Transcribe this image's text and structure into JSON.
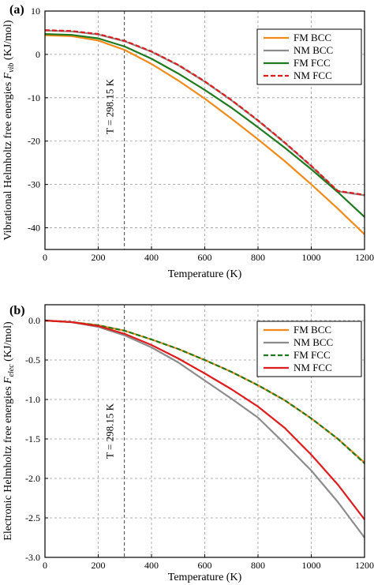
{
  "chart_data": [
    {
      "panel": "(a)",
      "type": "line",
      "xlabel": "Temperature (K)",
      "ylabel": "Vibrational Helmholtz free energies ",
      "ylabel_symbol": "F",
      "ylabel_sub": "vib",
      "ylabel_unit": " (KJ/mol)",
      "xlim": [
        0,
        1200
      ],
      "ylim": [
        -45,
        10
      ],
      "xticks": [
        0,
        200,
        400,
        600,
        800,
        1000,
        1200
      ],
      "yticks": [
        -40,
        -30,
        -20,
        -10,
        0,
        10
      ],
      "grid": true,
      "legend_position": "top-right",
      "annotation": {
        "text": "T = 298.15 K",
        "x": 298.15
      },
      "x": [
        0,
        100,
        200,
        300,
        400,
        500,
        600,
        700,
        800,
        900,
        1000,
        1100,
        1200
      ],
      "series": [
        {
          "name": "FM BCC",
          "color": "#f28a1a",
          "dash": "solid",
          "values": [
            4.4,
            4.2,
            3.2,
            1.0,
            -2.2,
            -6.0,
            -10.2,
            -14.8,
            -19.6,
            -24.6,
            -30.0,
            -35.6,
            -41.5
          ]
        },
        {
          "name": "NM BCC",
          "color": "#8c8c8c",
          "dash": "solid",
          "values": [
            5.5,
            5.3,
            4.6,
            3.0,
            0.6,
            -2.5,
            -6.3,
            -10.6,
            -15.3,
            -20.4,
            -25.8,
            -31.6,
            -32.5
          ]
        },
        {
          "name": "FM FCC",
          "color": "#1f7a1f",
          "dash": "solid",
          "values": [
            4.7,
            4.5,
            3.7,
            1.8,
            -1.0,
            -4.4,
            -8.2,
            -12.3,
            -16.8,
            -21.5,
            -26.5,
            -31.8,
            -37.5
          ]
        },
        {
          "name": "NM FCC",
          "color": "#e01b1b",
          "dash": "dashed",
          "values": [
            5.6,
            5.4,
            4.7,
            3.1,
            0.7,
            -2.4,
            -6.2,
            -10.5,
            -15.2,
            -20.3,
            -25.7,
            -31.5,
            -32.4
          ]
        }
      ]
    },
    {
      "panel": "(b)",
      "type": "line",
      "xlabel": "Temperature (K)",
      "ylabel": "Electronic Helmholtz free energies ",
      "ylabel_symbol": "F",
      "ylabel_sub": "elec",
      "ylabel_unit": " (KJ/mol)",
      "xlim": [
        0,
        1200
      ],
      "ylim": [
        -3.0,
        0.2
      ],
      "xticks": [
        0,
        200,
        400,
        600,
        800,
        1000,
        1200
      ],
      "yticks": [
        -3.0,
        -2.5,
        -2.0,
        -1.5,
        -1.0,
        -0.5,
        0.0
      ],
      "ytick_labels": [
        "-3.0",
        "-2.5",
        "-2.0",
        "-1.5",
        "-1.0",
        "-0.5",
        "0.0"
      ],
      "grid": true,
      "legend_position": "top-right",
      "annotation": {
        "text": "T = 298.15 K",
        "x": 298.15
      },
      "x": [
        0,
        100,
        200,
        300,
        400,
        500,
        600,
        700,
        800,
        900,
        1000,
        1100,
        1200
      ],
      "series": [
        {
          "name": "FM BCC",
          "color": "#f28a1a",
          "dash": "solid",
          "values": [
            0.0,
            -0.02,
            -0.06,
            -0.13,
            -0.24,
            -0.36,
            -0.5,
            -0.65,
            -0.82,
            -1.01,
            -1.24,
            -1.5,
            -1.8
          ]
        },
        {
          "name": "NM BCC",
          "color": "#8c8c8c",
          "dash": "solid",
          "values": [
            0.0,
            -0.02,
            -0.08,
            -0.19,
            -0.34,
            -0.53,
            -0.76,
            -0.99,
            -1.23,
            -1.56,
            -1.9,
            -2.3,
            -2.75
          ]
        },
        {
          "name": "FM FCC",
          "color": "#1f7a1f",
          "dash": "dashed",
          "values": [
            0.0,
            -0.02,
            -0.06,
            -0.13,
            -0.24,
            -0.36,
            -0.5,
            -0.65,
            -0.82,
            -1.01,
            -1.24,
            -1.5,
            -1.81
          ]
        },
        {
          "name": "NM FCC",
          "color": "#e01b1b",
          "dash": "solid",
          "values": [
            0.0,
            -0.02,
            -0.07,
            -0.17,
            -0.31,
            -0.48,
            -0.67,
            -0.87,
            -1.09,
            -1.36,
            -1.7,
            -2.08,
            -2.52
          ]
        }
      ]
    }
  ]
}
